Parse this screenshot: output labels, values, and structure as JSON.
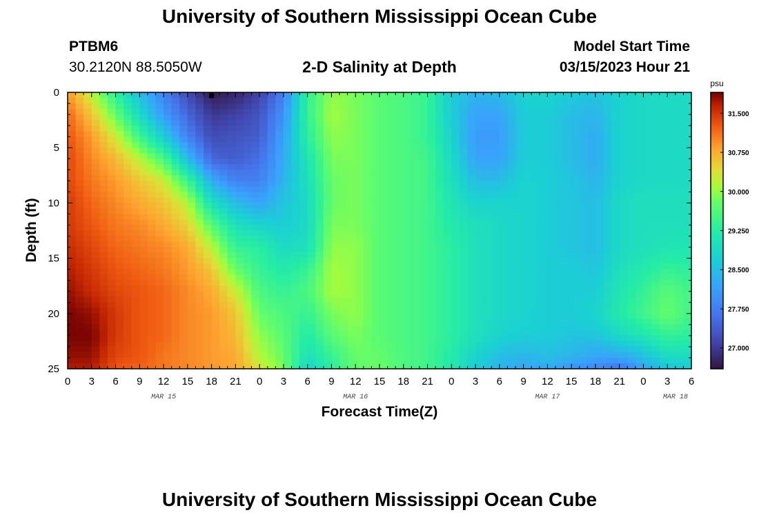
{
  "header": {
    "title": "University of Southern Mississippi Ocean Cube",
    "station_id": "PTBM6",
    "location": "30.2120N  88.5050W",
    "plot_title": "2-D Salinity at Depth",
    "model_start_label": "Model Start Time",
    "model_start_value": "03/15/2023 Hour 21"
  },
  "footer": {
    "title": "University of Southern Mississippi Ocean Cube"
  },
  "chart_data": {
    "type": "heatmap",
    "title": "2-D Salinity at Depth",
    "xlabel": "Forecast Time(Z)",
    "ylabel": "Depth (ft)",
    "x_tick_labels": [
      "0",
      "3",
      "6",
      "9",
      "12",
      "15",
      "18",
      "21",
      "0",
      "3",
      "6",
      "9",
      "12",
      "15",
      "18",
      "21",
      "0",
      "3",
      "6",
      "9",
      "12",
      "15",
      "18",
      "21",
      "0",
      "3",
      "6"
    ],
    "x_range_hours": [
      0,
      78
    ],
    "x_month_labels": [
      {
        "label": "MAR 15",
        "hour": 12
      },
      {
        "label": "MAR 16",
        "hour": 36
      },
      {
        "label": "MAR 17",
        "hour": 60
      },
      {
        "label": "MAR 18",
        "hour": 76
      }
    ],
    "y_tick_values": [
      0,
      5,
      10,
      15,
      20,
      25
    ],
    "ylim": [
      0,
      25
    ],
    "y_inverted": true,
    "colorbar": {
      "unit": "psu",
      "tick_values": [
        "31.500",
        "30.750",
        "30.000",
        "29.250",
        "28.500",
        "27.750",
        "27.000"
      ],
      "range": [
        26.6,
        31.9
      ],
      "colormap": "turbo"
    },
    "marker": {
      "hour": 18,
      "depth": 0.3,
      "color": "#000000"
    },
    "depth_profiles": [
      0,
      2,
      4,
      6,
      8,
      10,
      12,
      14,
      16,
      18,
      20,
      22,
      24,
      25
    ],
    "salinity_grid": [
      {
        "hour": 0,
        "values": [
          30.9,
          31.2,
          31.3,
          31.4,
          31.4,
          31.5,
          31.5,
          31.6,
          31.7,
          31.8,
          31.9,
          31.9,
          31.8,
          31.7
        ]
      },
      {
        "hour": 3,
        "values": [
          30.2,
          30.6,
          30.9,
          31.0,
          31.1,
          31.2,
          31.3,
          31.4,
          31.5,
          31.6,
          31.8,
          31.9,
          31.8,
          31.7
        ]
      },
      {
        "hour": 6,
        "values": [
          29.3,
          29.8,
          30.3,
          30.7,
          30.9,
          31.0,
          31.1,
          31.2,
          31.3,
          31.4,
          31.5,
          31.5,
          31.4,
          31.3
        ]
      },
      {
        "hour": 9,
        "values": [
          28.5,
          28.9,
          29.5,
          30.2,
          30.6,
          30.8,
          31.0,
          31.1,
          31.2,
          31.3,
          31.3,
          31.3,
          31.3,
          31.2
        ]
      },
      {
        "hour": 12,
        "values": [
          27.8,
          28.1,
          28.7,
          29.6,
          30.3,
          30.6,
          30.8,
          31.0,
          31.1,
          31.2,
          31.2,
          31.2,
          31.1,
          31.1
        ]
      },
      {
        "hour": 15,
        "values": [
          27.2,
          27.5,
          27.8,
          28.5,
          29.5,
          30.2,
          30.5,
          30.8,
          30.9,
          31.0,
          31.0,
          31.0,
          31.0,
          31.0
        ]
      },
      {
        "hour": 18,
        "values": [
          26.7,
          27.0,
          27.2,
          27.5,
          28.3,
          29.0,
          29.7,
          30.2,
          30.6,
          30.8,
          30.9,
          30.9,
          30.9,
          30.9
        ]
      },
      {
        "hour": 21,
        "values": [
          26.8,
          27.1,
          27.3,
          27.4,
          27.8,
          28.5,
          29.0,
          29.4,
          29.8,
          30.3,
          30.6,
          30.7,
          30.8,
          30.8
        ]
      },
      {
        "hour": 24,
        "values": [
          27.1,
          27.3,
          27.4,
          27.6,
          27.8,
          28.2,
          28.8,
          29.3,
          29.4,
          29.6,
          29.8,
          30.0,
          30.2,
          30.4
        ]
      },
      {
        "hour": 27,
        "values": [
          27.8,
          28.0,
          28.2,
          28.3,
          28.4,
          28.6,
          28.7,
          28.9,
          29.2,
          29.4,
          29.6,
          29.7,
          29.8,
          29.9
        ]
      },
      {
        "hour": 30,
        "values": [
          29.4,
          29.4,
          29.3,
          29.1,
          29.0,
          28.9,
          28.9,
          29.0,
          29.4,
          29.6,
          29.4,
          29.2,
          29.0,
          28.8
        ]
      },
      {
        "hour": 33,
        "values": [
          30.0,
          30.1,
          30.0,
          29.9,
          29.8,
          29.8,
          29.9,
          30.0,
          30.1,
          30.1,
          29.9,
          29.7,
          29.4,
          29.3
        ]
      },
      {
        "hour": 36,
        "values": [
          29.9,
          29.9,
          29.9,
          29.9,
          29.9,
          29.9,
          29.9,
          30.0,
          30.0,
          30.0,
          30.0,
          29.9,
          29.8,
          29.8
        ]
      },
      {
        "hour": 39,
        "values": [
          29.7,
          29.7,
          29.7,
          29.7,
          29.7,
          29.7,
          29.7,
          29.7,
          29.7,
          29.7,
          29.7,
          29.7,
          29.8,
          29.8
        ]
      },
      {
        "hour": 42,
        "values": [
          29.6,
          29.6,
          29.6,
          29.6,
          29.6,
          29.6,
          29.6,
          29.6,
          29.6,
          29.6,
          29.6,
          29.6,
          29.6,
          29.6
        ]
      },
      {
        "hour": 45,
        "values": [
          29.4,
          29.4,
          29.4,
          29.5,
          29.5,
          29.5,
          29.5,
          29.5,
          29.5,
          29.5,
          29.5,
          29.5,
          29.5,
          29.5
        ]
      },
      {
        "hour": 48,
        "values": [
          28.7,
          28.7,
          28.8,
          28.9,
          29.0,
          29.1,
          29.2,
          29.3,
          29.3,
          29.3,
          29.3,
          29.3,
          29.2,
          29.2
        ]
      },
      {
        "hour": 51,
        "values": [
          28.4,
          28.2,
          28.1,
          28.2,
          28.5,
          28.8,
          29.0,
          29.0,
          29.0,
          29.0,
          29.0,
          29.0,
          28.8,
          28.7
        ]
      },
      {
        "hour": 54,
        "values": [
          28.5,
          28.2,
          28.1,
          28.2,
          28.5,
          28.8,
          28.9,
          28.9,
          28.9,
          28.9,
          28.9,
          28.8,
          28.5,
          28.4
        ]
      },
      {
        "hour": 57,
        "values": [
          28.8,
          28.7,
          28.7,
          28.7,
          28.8,
          28.8,
          28.8,
          28.8,
          28.8,
          28.8,
          28.8,
          28.7,
          28.4,
          28.2
        ]
      },
      {
        "hour": 60,
        "values": [
          28.8,
          28.7,
          28.7,
          28.7,
          28.7,
          28.7,
          28.7,
          28.7,
          28.7,
          28.7,
          28.7,
          28.7,
          28.5,
          28.3
        ]
      },
      {
        "hour": 63,
        "values": [
          28.7,
          28.5,
          28.5,
          28.5,
          28.6,
          28.6,
          28.6,
          28.6,
          28.7,
          28.7,
          28.7,
          28.6,
          28.4,
          28.0
        ]
      },
      {
        "hour": 66,
        "values": [
          28.6,
          28.4,
          28.3,
          28.3,
          28.4,
          28.5,
          28.5,
          28.5,
          28.6,
          28.7,
          28.8,
          28.6,
          28.2,
          27.9
        ]
      },
      {
        "hour": 69,
        "values": [
          28.8,
          28.8,
          28.8,
          28.8,
          28.8,
          28.9,
          28.9,
          28.9,
          29.0,
          29.1,
          29.2,
          28.9,
          28.2,
          27.6
        ]
      },
      {
        "hour": 72,
        "values": [
          28.9,
          28.9,
          28.9,
          28.9,
          28.9,
          29.0,
          29.0,
          29.0,
          29.2,
          29.4,
          29.5,
          29.1,
          28.5,
          28.2
        ]
      },
      {
        "hour": 75,
        "values": [
          28.9,
          28.9,
          28.9,
          28.9,
          28.9,
          29.0,
          29.0,
          29.1,
          29.4,
          29.7,
          29.8,
          29.4,
          28.9,
          28.6
        ]
      },
      {
        "hour": 78,
        "values": [
          28.9,
          28.9,
          28.9,
          28.9,
          28.9,
          29.0,
          29.0,
          29.1,
          29.3,
          29.5,
          29.5,
          29.3,
          28.9,
          28.7
        ]
      }
    ]
  }
}
